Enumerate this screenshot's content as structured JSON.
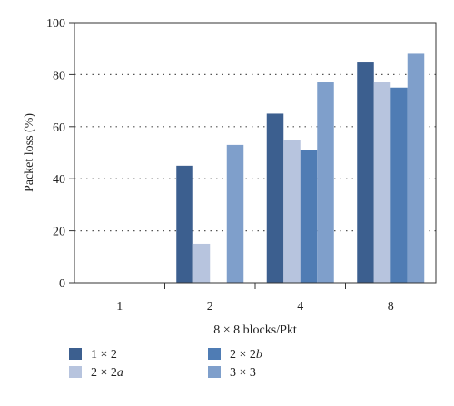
{
  "chart_data": {
    "type": "bar",
    "title": "",
    "xlabel": "8 × 8 blocks/Pkt",
    "ylabel": "Packet loss (%)",
    "ylim": [
      0,
      100
    ],
    "yticks": [
      "0",
      "20",
      "40",
      "60",
      "80",
      "100"
    ],
    "ytick_values": [
      0,
      20,
      40,
      60,
      80,
      100
    ],
    "grid": "horizontal dotted",
    "legend_position": "bottom",
    "categories": [
      "1",
      "2",
      "4",
      "8"
    ],
    "series": [
      {
        "name": "1 × 2",
        "color": "#3c5f8f",
        "values": [
          0,
          45,
          65,
          85
        ]
      },
      {
        "name": "2 × 2a",
        "color": "#b7c4de",
        "values": [
          0,
          15,
          55,
          77
        ]
      },
      {
        "name": "2 × 2b",
        "color": "#4f7cb4",
        "values": [
          0,
          0,
          51,
          75
        ]
      },
      {
        "name": "3 × 3",
        "color": "#7f9fcb",
        "values": [
          0,
          53,
          77,
          88
        ]
      }
    ]
  }
}
